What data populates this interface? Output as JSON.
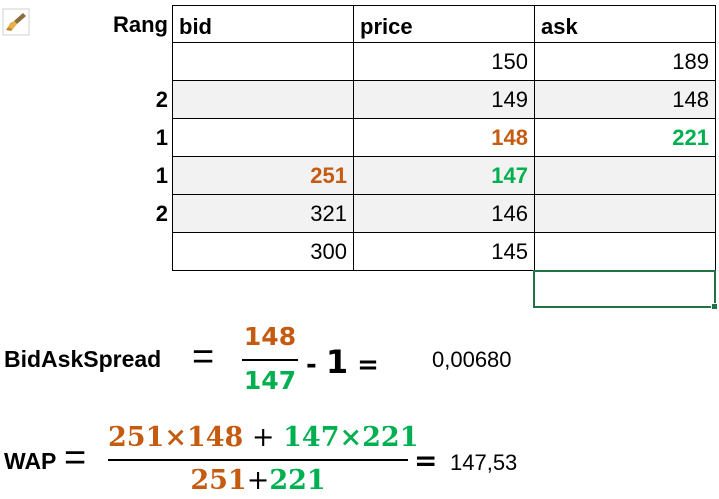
{
  "table": {
    "rang_header": "Rang",
    "headers": [
      "bid",
      "price",
      "ask"
    ],
    "rows": [
      {
        "rank": "",
        "bid": "",
        "price": "150",
        "ask": "189"
      },
      {
        "rank": "2",
        "bid": "",
        "price": "149",
        "ask": "148"
      },
      {
        "rank": "1",
        "bid": "",
        "price": "148",
        "ask": "221"
      },
      {
        "rank": "1",
        "bid": "251",
        "price": "147",
        "ask": ""
      },
      {
        "rank": "2",
        "bid": "321",
        "price": "146",
        "ask": ""
      },
      {
        "rank": "",
        "bid": "300",
        "price": "145",
        "ask": ""
      }
    ]
  },
  "formula1": {
    "label": "BidAskSpread",
    "equals": "=",
    "numerator": "148",
    "denominator": "147",
    "minus": "- ",
    "one": "1",
    "equals2": " =",
    "result": "0,00680"
  },
  "formula2": {
    "label": "WAP",
    "equals": "=",
    "num_a": "251×148",
    "num_plus": " + ",
    "num_b": "147×221",
    "den_a": "251",
    "den_plus": "+",
    "den_b": "221",
    "equals2": "=",
    "result": "147,53"
  },
  "colors": {
    "bid_accent": "#c55a11",
    "ask_accent": "#00b050",
    "selection": "#217346"
  },
  "icons": {
    "brush": "paintbrush-icon"
  }
}
